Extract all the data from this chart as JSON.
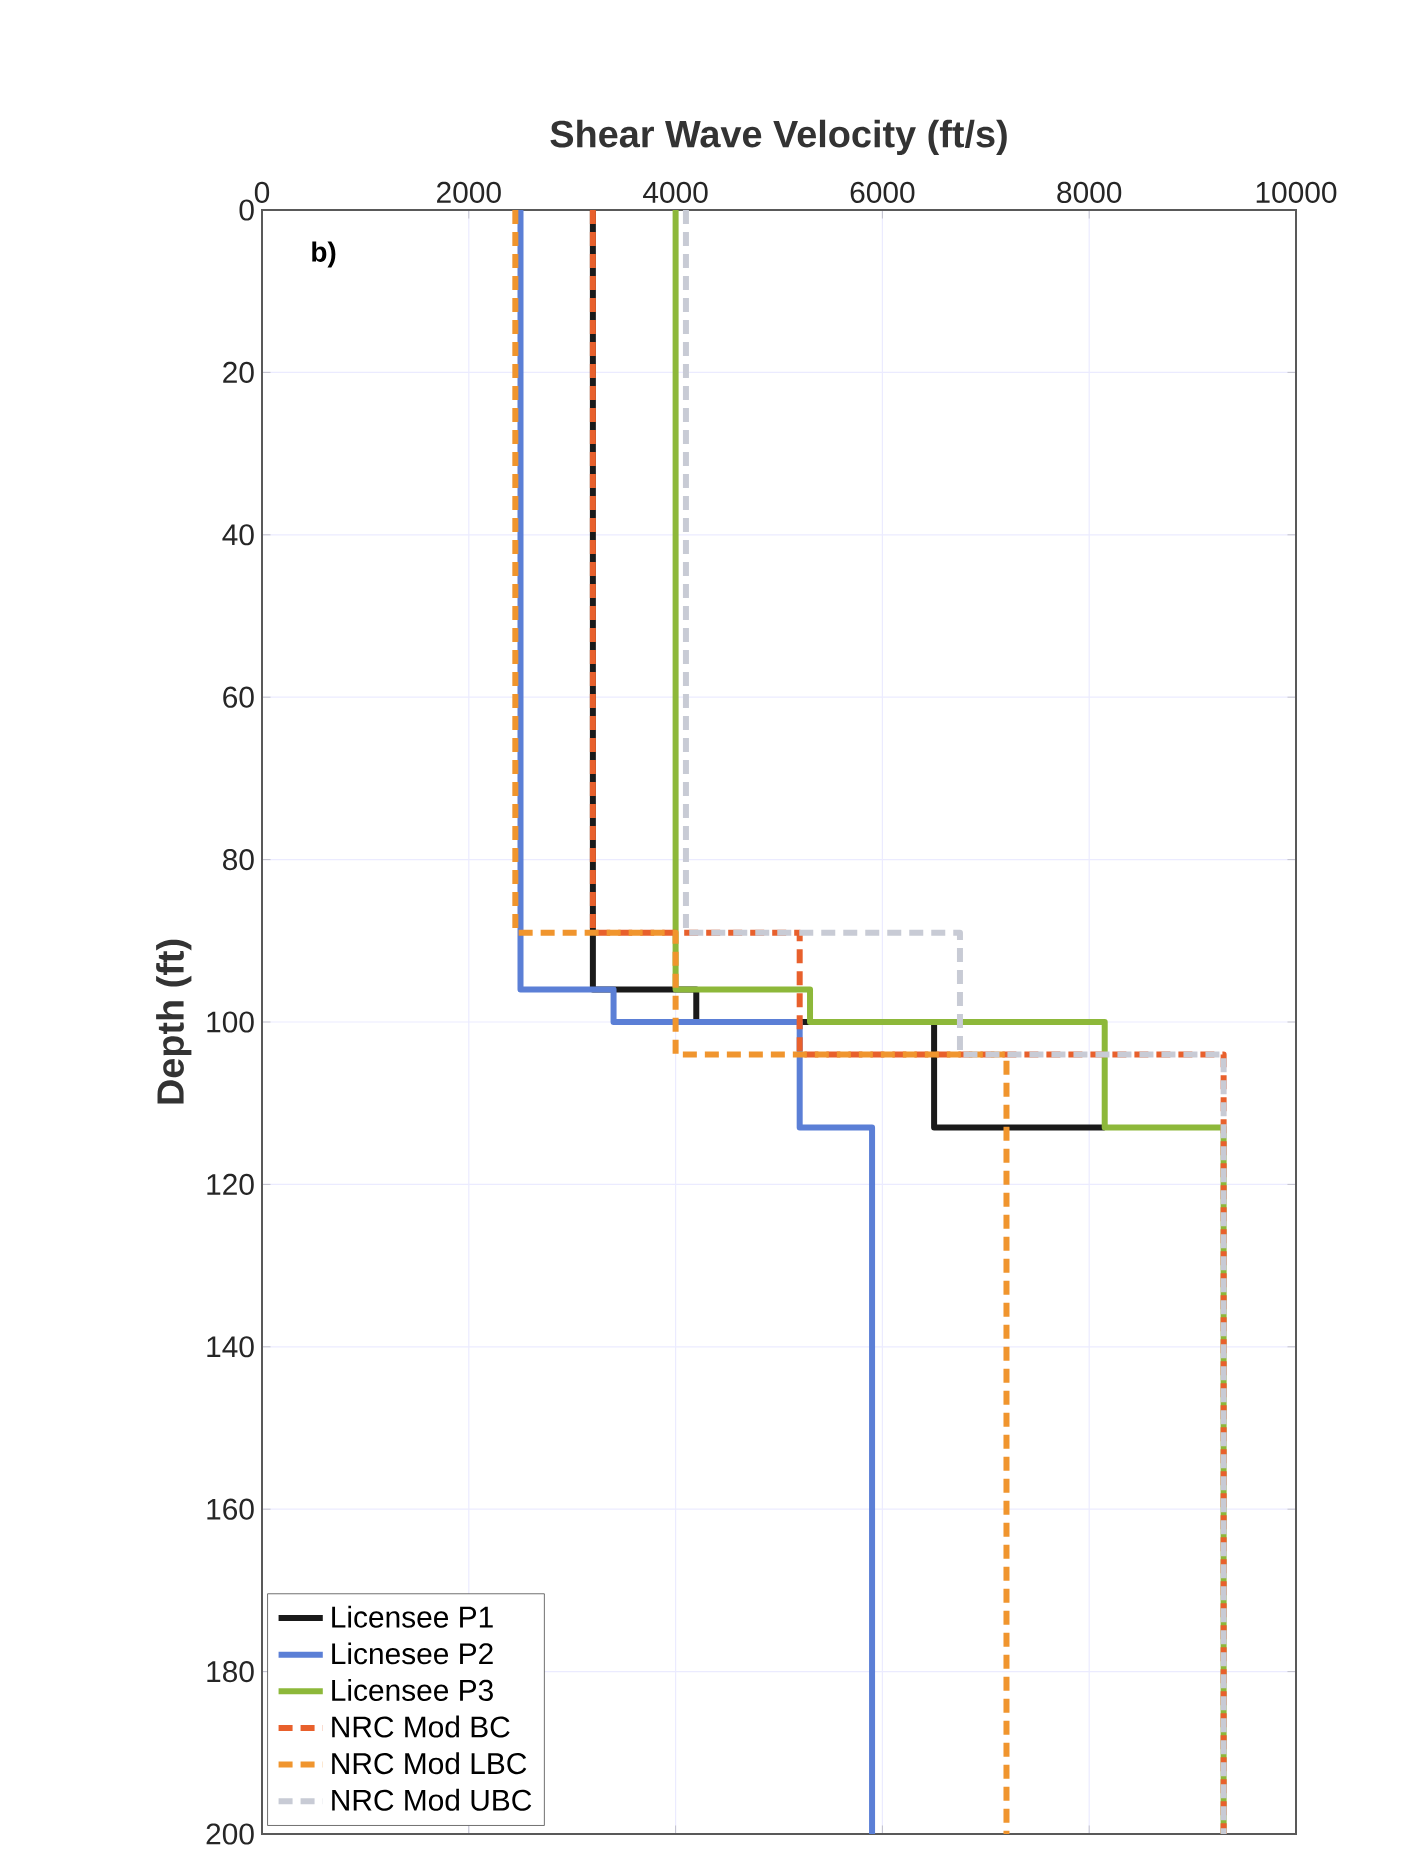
{
  "chart_data": {
    "type": "line",
    "title": "Shear Wave Velocity (ft/s)",
    "ylabel": "Depth (ft)",
    "annotations": [
      "b)"
    ],
    "xlim": [
      0,
      10000
    ],
    "xticks": [
      0,
      2000,
      4000,
      6000,
      8000,
      10000
    ],
    "ylim": [
      200,
      0
    ],
    "yticks": [
      0,
      20,
      40,
      60,
      80,
      100,
      120,
      140,
      160,
      180,
      200
    ],
    "grid": true,
    "legend": "bottom left",
    "marker": "none",
    "series": [
      {
        "name": "Licensee P1",
        "color": "#1a1a1a",
        "line_style": "solid",
        "x": [
          3200,
          3200,
          4200,
          4200,
          6500,
          6500,
          8150
        ],
        "values": [
          0,
          96,
          96,
          100,
          100,
          113,
          113
        ]
      },
      {
        "name": "Licnesee P2",
        "color": "#5b7fd6",
        "line_style": "solid",
        "x": [
          2500,
          2500,
          3400,
          3400,
          5200,
          5200,
          5900,
          5900
        ],
        "values": [
          0,
          96,
          96,
          100,
          100,
          113,
          113,
          200
        ]
      },
      {
        "name": "Licensee P3",
        "color": "#8db83a",
        "line_style": "solid",
        "x": [
          4000,
          4000,
          5300,
          5300,
          8150,
          8150,
          9300,
          9300
        ],
        "values": [
          0,
          96,
          96,
          100,
          100,
          113,
          113,
          200
        ]
      },
      {
        "name": "NRC Mod BC",
        "color": "#e8602c",
        "line_style": "dashed",
        "x": [
          3200,
          3200,
          5200,
          5200,
          9300,
          9300
        ],
        "values": [
          0,
          89,
          89,
          104,
          104,
          200
        ]
      },
      {
        "name": "NRC Mod LBC",
        "color": "#f0952e",
        "line_style": "dashed",
        "x": [
          2450,
          2450,
          4000,
          4000,
          7200,
          7200
        ],
        "values": [
          0,
          89,
          89,
          104,
          104,
          200
        ]
      },
      {
        "name": "NRC Mod UBC",
        "color": "#c8cbd5",
        "line_style": "dashed",
        "x": [
          4100,
          4100,
          6750,
          6750,
          9300,
          9300
        ],
        "values": [
          0,
          89,
          89,
          104,
          104,
          200
        ]
      }
    ]
  }
}
